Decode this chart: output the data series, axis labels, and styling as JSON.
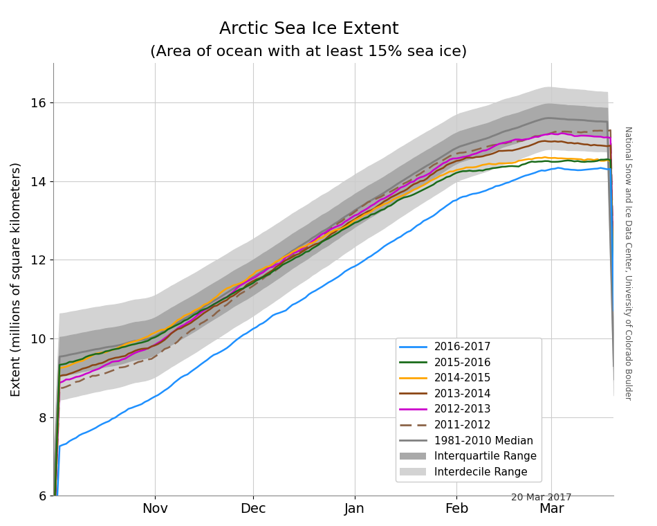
{
  "title_line1": "Arctic Sea Ice Extent",
  "title_line2": "(Area of ocean with at least 15% sea ice)",
  "ylabel": "Extent (millions of square kilometers)",
  "watermark": "National Snow and Ice Data Center, University of Colorado Boulder",
  "date_label": "20 Mar 2017",
  "ylim": [
    6,
    17
  ],
  "yticks": [
    6,
    8,
    10,
    12,
    14,
    16
  ],
  "colors": {
    "2016-2017": "#1E90FF",
    "2015-2016": "#1a6b1a",
    "2014-2015": "#FFA500",
    "2013-2014": "#8B4513",
    "2012-2013": "#CC00CC",
    "2011-2012": "#8B6347",
    "median": "#808080",
    "iqr": "#A9A9A9",
    "idr": "#D3D3D3"
  },
  "n_days": 172,
  "background": "#FFFFFF"
}
